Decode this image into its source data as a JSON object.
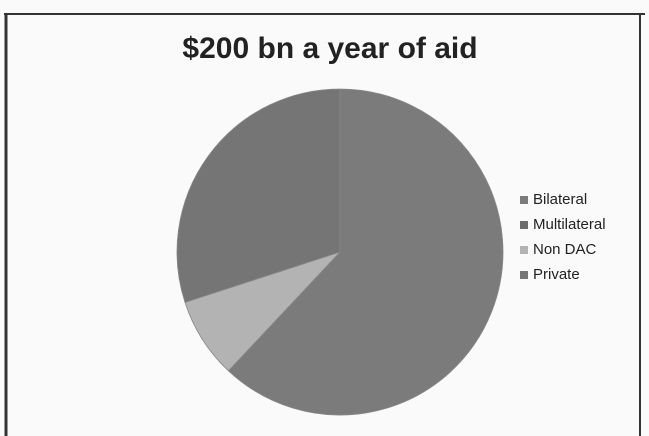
{
  "chart_data": {
    "type": "pie",
    "title": "$200 bn a year of aid",
    "categories": [
      "Bilateral",
      "Multilateral",
      "Non DAC",
      "Private"
    ],
    "values": [
      62,
      0,
      8,
      30
    ],
    "colors": [
      "#7b7b7b",
      "#6c6c6c",
      "#b3b3b3",
      "#757575"
    ],
    "legend": "right"
  }
}
